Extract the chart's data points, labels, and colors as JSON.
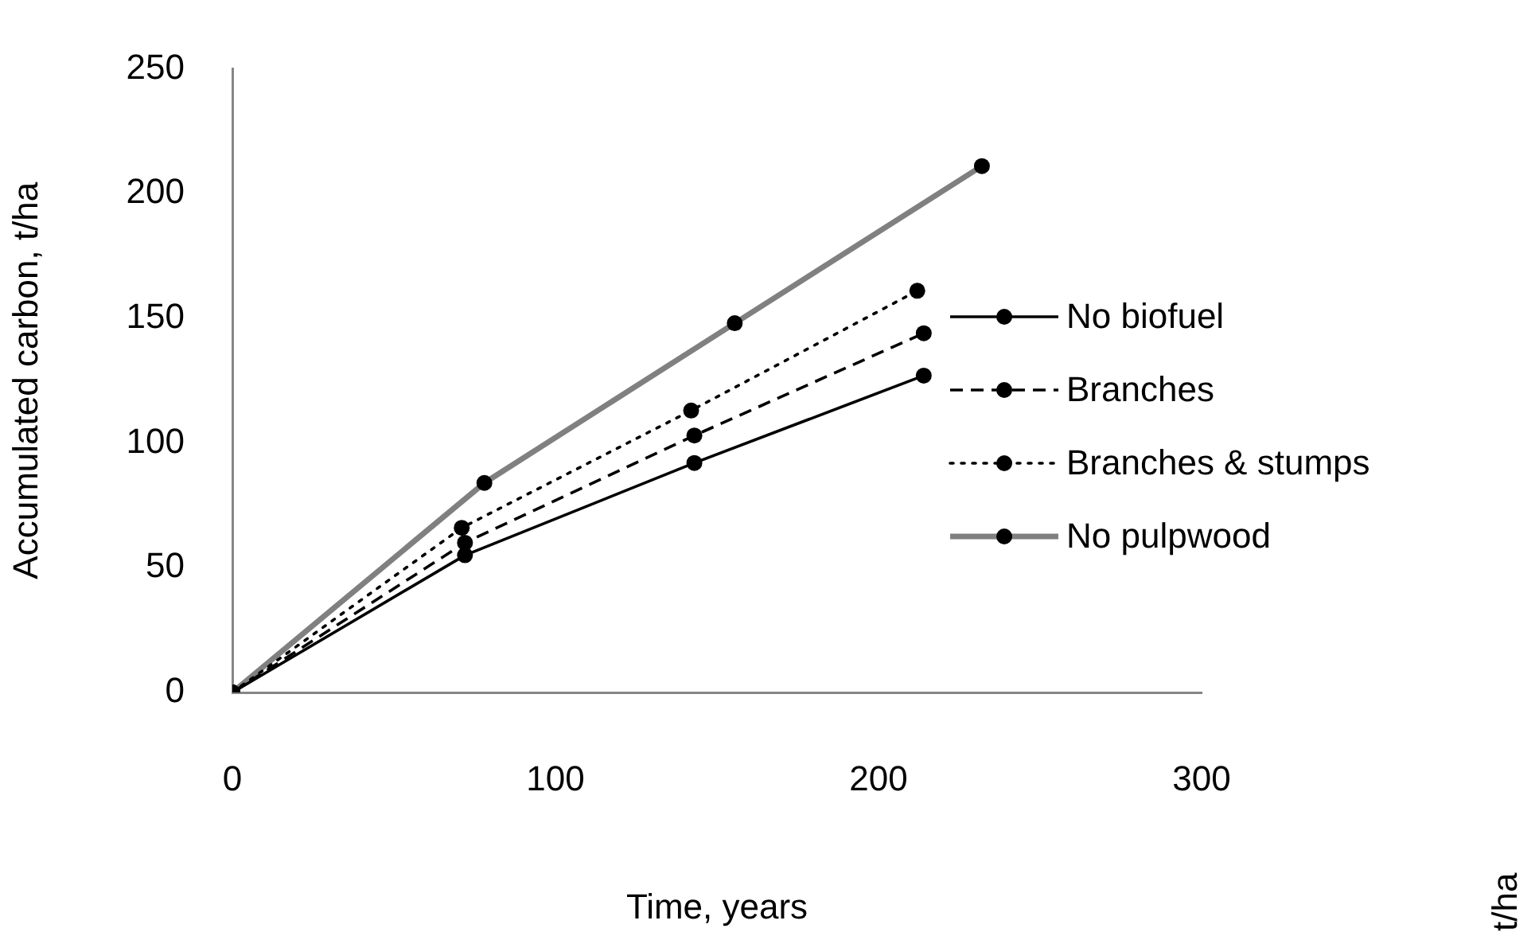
{
  "chart_data": {
    "type": "line",
    "xlabel": "Time, years",
    "ylabel": "Accumulated carbon, t/ha",
    "xlim": [
      0,
      300
    ],
    "xticks": [
      0,
      100,
      200,
      300
    ],
    "ylim": [
      0,
      250
    ],
    "yticks": [
      0,
      50,
      100,
      150,
      200,
      250
    ],
    "grid": false,
    "legend": "right",
    "marker": "circle",
    "annotations": [
      "t/ha"
    ],
    "series": [
      {
        "name": "No biofuel",
        "color": "#000000",
        "line_style": "solid",
        "x": [
          0,
          72,
          143,
          214
        ],
        "values": [
          0,
          55,
          92,
          127
        ]
      },
      {
        "name": "Branches",
        "color": "#000000",
        "line_style": "dashed",
        "x": [
          0,
          72,
          143,
          214
        ],
        "values": [
          0,
          60,
          103,
          144
        ]
      },
      {
        "name": "Branches & stumps",
        "color": "#000000",
        "line_style": "dotted",
        "x": [
          0,
          71,
          142,
          212
        ],
        "values": [
          0,
          66,
          113,
          161
        ]
      },
      {
        "name": "No pulpwood",
        "color": "#808080",
        "line_style": "solid",
        "x": [
          0,
          78,
          155.5,
          232
        ],
        "values": [
          0,
          84,
          148,
          211
        ]
      }
    ]
  }
}
